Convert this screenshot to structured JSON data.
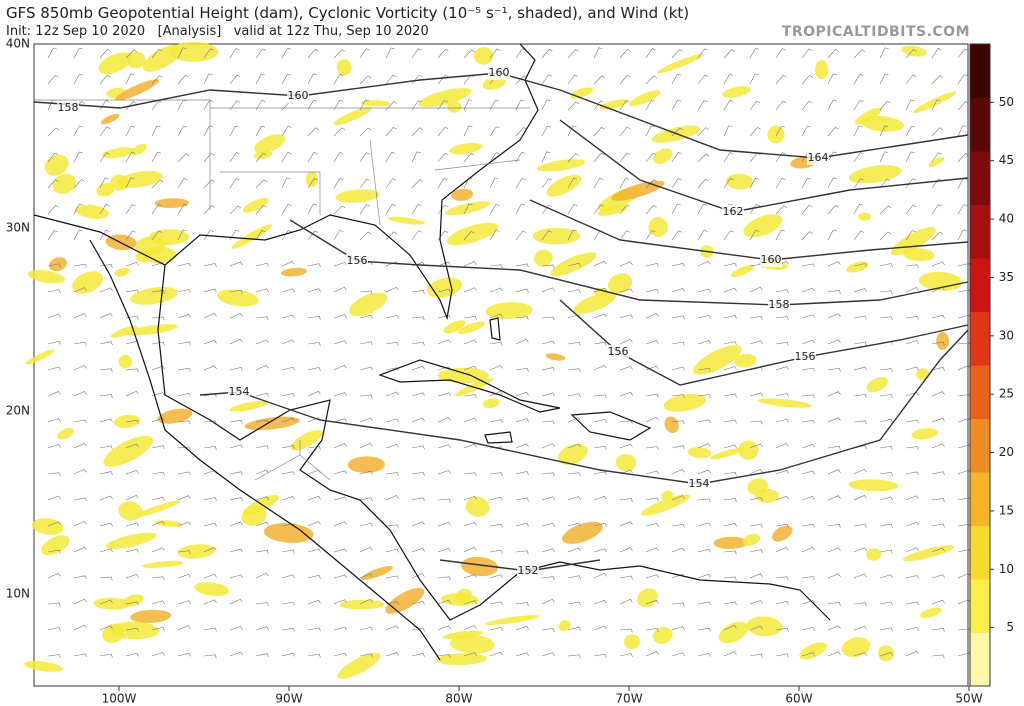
{
  "header": {
    "title": "GFS 850mb Geopotential Height (dam), Cyclonic Vorticity (10⁻⁵ s⁻¹, shaded), and Wind (kt)",
    "subtitle": "Init: 12z Sep 10 2020   [Analysis]   valid at 12z Thu, Sep 10 2020",
    "site": "TROPICALTIDBITS.COM"
  },
  "map": {
    "lat_labels": [
      "40N",
      "30N",
      "20N",
      "10N"
    ],
    "lon_labels": [
      "100W",
      "90W",
      "80W",
      "70W",
      "60W",
      "50W"
    ],
    "contour_labels": [
      158,
      160,
      160,
      164,
      162,
      160,
      158,
      156,
      156,
      156,
      154,
      154,
      152
    ]
  },
  "colorbar": {
    "ticks": [
      5,
      10,
      15,
      20,
      25,
      30,
      35,
      40,
      45,
      50
    ]
  }
}
